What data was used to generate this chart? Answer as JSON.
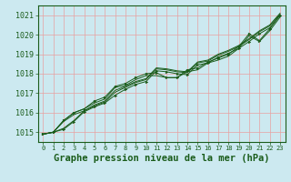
{
  "xlabel": "Graphe pression niveau de la mer (hPa)",
  "xlim": [
    -0.5,
    23.5
  ],
  "ylim": [
    1014.5,
    1021.5
  ],
  "yticks": [
    1015,
    1016,
    1017,
    1018,
    1019,
    1020,
    1021
  ],
  "xticks": [
    0,
    1,
    2,
    3,
    4,
    5,
    6,
    7,
    8,
    9,
    10,
    11,
    12,
    13,
    14,
    15,
    16,
    17,
    18,
    19,
    20,
    21,
    22,
    23
  ],
  "bg_color": "#cce9f0",
  "grid_color": "#e8a0a0",
  "line_color": "#1a5c1a",
  "lines": [
    [
      1014.9,
      1015.0,
      1015.15,
      1015.55,
      1016.05,
      1016.3,
      1016.5,
      1016.9,
      1017.2,
      1017.45,
      1017.6,
      1018.15,
      1018.1,
      1018.0,
      1017.95,
      1018.45,
      1018.55,
      1018.85,
      1019.05,
      1019.3,
      1019.65,
      1020.05,
      1020.35,
      1021.0
    ],
    [
      1014.9,
      1015.0,
      1015.2,
      1015.6,
      1016.1,
      1016.35,
      1016.55,
      1017.05,
      1017.3,
      1017.55,
      1017.7,
      1018.25,
      1018.2,
      1018.1,
      1018.05,
      1018.55,
      1018.65,
      1018.95,
      1019.15,
      1019.4,
      1019.75,
      1020.15,
      1020.45,
      1021.05
    ],
    [
      1014.9,
      1015.0,
      1015.55,
      1015.9,
      1016.1,
      1016.4,
      1016.6,
      1017.15,
      1017.35,
      1017.6,
      1017.75,
      1018.3,
      1018.25,
      1018.15,
      1018.1,
      1018.6,
      1018.7,
      1019.0,
      1019.2,
      1019.45,
      1019.8,
      1020.2,
      1020.5,
      1021.1
    ],
    [
      1014.9,
      1015.0,
      1015.6,
      1016.0,
      1016.2,
      1016.5,
      1016.7,
      1017.3,
      1017.4,
      1017.7,
      1017.9,
      1017.9,
      1017.8,
      1017.8,
      1018.1,
      1018.2,
      1018.55,
      1018.7,
      1018.9,
      1019.3,
      1019.95,
      1019.65,
      1020.2,
      1020.9
    ],
    [
      1014.9,
      1015.0,
      1015.6,
      1016.0,
      1016.2,
      1016.6,
      1016.8,
      1017.35,
      1017.5,
      1017.8,
      1018.0,
      1018.05,
      1017.8,
      1017.8,
      1018.2,
      1018.3,
      1018.6,
      1018.8,
      1019.0,
      1019.4,
      1020.05,
      1019.7,
      1020.3,
      1021.0
    ]
  ],
  "marker_indices": [
    0,
    4
  ],
  "font_color": "#1a5c1a",
  "tick_fontsize": 6,
  "label_fontsize": 7.5
}
